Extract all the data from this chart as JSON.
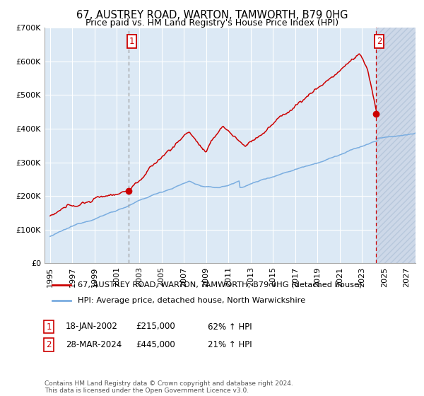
{
  "title": "67, AUSTREY ROAD, WARTON, TAMWORTH, B79 0HG",
  "subtitle": "Price paid vs. HM Land Registry's House Price Index (HPI)",
  "legend_line1": "67, AUSTREY ROAD, WARTON, TAMWORTH, B79 0HG (detached house)",
  "legend_line2": "HPI: Average price, detached house, North Warwickshire",
  "annotation1_date": "18-JAN-2002",
  "annotation1_price": "£215,000",
  "annotation1_hpi": "62% ↑ HPI",
  "annotation2_date": "28-MAR-2024",
  "annotation2_price": "£445,000",
  "annotation2_hpi": "21% ↑ HPI",
  "copyright": "Contains HM Land Registry data © Crown copyright and database right 2024.\nThis data is licensed under the Open Government Licence v3.0.",
  "hpi_color": "#7aade0",
  "price_color": "#cc0000",
  "dot_color": "#cc0000",
  "bg_color": "#dce9f5",
  "grid_color": "#ffffff",
  "vline1_color": "#999999",
  "vline2_color": "#cc0000",
  "ylim": [
    0,
    700000
  ],
  "ytick_values": [
    0,
    100000,
    200000,
    300000,
    400000,
    500000,
    600000,
    700000
  ],
  "ytick_labels": [
    "£0",
    "£100K",
    "£200K",
    "£300K",
    "£400K",
    "£500K",
    "£600K",
    "£700K"
  ],
  "xtick_values": [
    1995,
    1997,
    1999,
    2001,
    2003,
    2005,
    2007,
    2009,
    2011,
    2013,
    2015,
    2017,
    2019,
    2021,
    2023,
    2025,
    2027
  ],
  "xlim_start": 1994.5,
  "xlim_end": 2027.8,
  "sale1_x": 2002.05,
  "sale1_y": 215000,
  "sale2_x": 2024.24,
  "sale2_y": 445000,
  "hatch_start": 2024.24
}
